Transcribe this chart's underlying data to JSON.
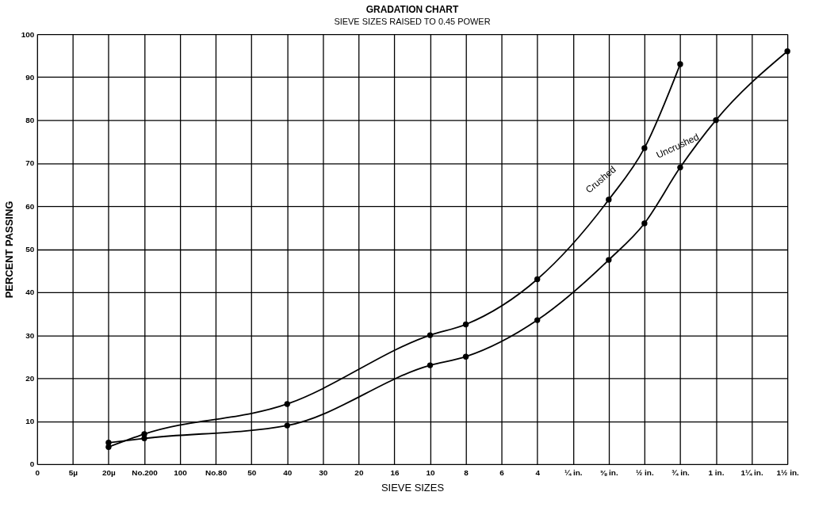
{
  "chart_data": {
    "type": "line",
    "title": "GRADATION CHART",
    "subtitle": "SIEVE SIZES RAISED TO 0.45 POWER",
    "xlabel": "SIEVE SIZES",
    "ylabel": "PERCENT PASSING",
    "categories": [
      "0",
      "5µ",
      "20µ",
      "No.200",
      "100",
      "No.80",
      "50",
      "40",
      "30",
      "20",
      "16",
      "10",
      "8",
      "6",
      "4",
      "¼ in.",
      "⅜ in.",
      "½ in.",
      "¾ in.",
      "1 in.",
      "1¼ in.",
      "1½ in."
    ],
    "ylim": [
      0,
      100
    ],
    "yticks": [
      0,
      10,
      20,
      30,
      40,
      50,
      60,
      70,
      80,
      90,
      100
    ],
    "grid": true,
    "marker": "circle",
    "line_style": "solid",
    "series": [
      {
        "name": "Crushed",
        "color": "#000000",
        "x": [
          "20µ",
          "No.200",
          "40",
          "10",
          "8",
          "4",
          "⅜ in.",
          "½ in.",
          "¾ in."
        ],
        "values": [
          4,
          7,
          14,
          30,
          32.5,
          43,
          61.5,
          73.5,
          93
        ]
      },
      {
        "name": "Uncrushed",
        "color": "#000000",
        "x": [
          "20µ",
          "No.200",
          "40",
          "10",
          "8",
          "4",
          "⅜ in.",
          "½ in.",
          "¾ in.",
          "1 in.",
          "1½ in."
        ],
        "values": [
          5,
          6,
          9,
          23,
          25,
          33.5,
          47.5,
          56,
          69,
          80,
          96
        ]
      }
    ]
  }
}
